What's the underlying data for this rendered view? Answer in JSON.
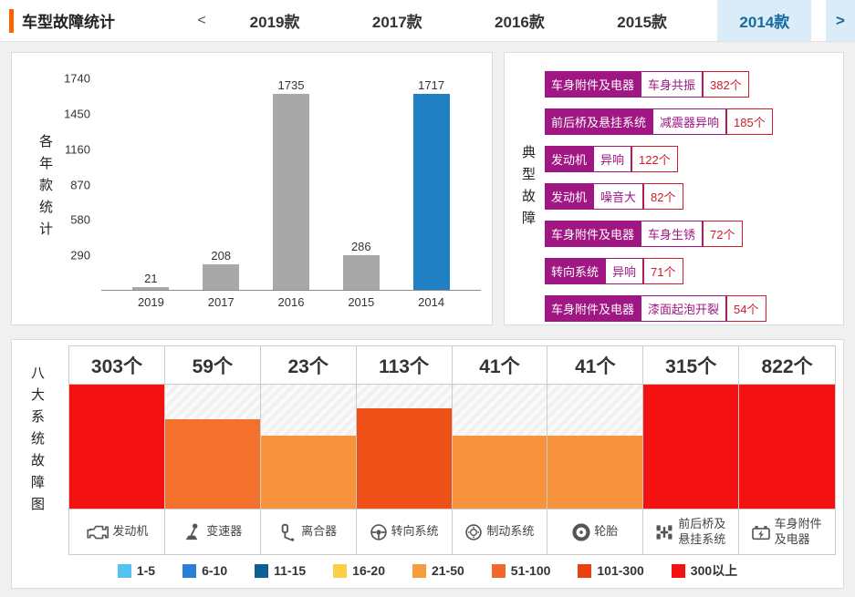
{
  "colors": {
    "accent": "#ff6200",
    "tab-active-bg": "#d9ecf8",
    "tab-active-text": "#176a9e",
    "badge-magenta": "#a01682",
    "count-red": "#cf1b2b"
  },
  "header": {
    "title": "车型故障统计",
    "prev_arrow": "<",
    "next_arrow": ">",
    "tabs": [
      {
        "label": "2019款",
        "active": false
      },
      {
        "label": "2017款",
        "active": false
      },
      {
        "label": "2016款",
        "active": false
      },
      {
        "label": "2015款",
        "active": false
      },
      {
        "label": "2014款",
        "active": true
      }
    ]
  },
  "yearly_panel": {
    "side_label": "各年款统计"
  },
  "typical_panel": {
    "side_label": "典型故障",
    "items": [
      {
        "system": "车身附件及电器",
        "fault": "车身共振",
        "count": "382个"
      },
      {
        "system": "前后桥及悬挂系统",
        "fault": "减震器异响",
        "count": "185个"
      },
      {
        "system": "发动机",
        "fault": "异响",
        "count": "122个"
      },
      {
        "system": "发动机",
        "fault": "噪音大",
        "count": "82个"
      },
      {
        "system": "车身附件及电器",
        "fault": "车身生锈",
        "count": "72个"
      },
      {
        "system": "转向系统",
        "fault": "异响",
        "count": "71个"
      },
      {
        "system": "车身附件及电器",
        "fault": "漆面起泡开裂",
        "count": "54个"
      }
    ]
  },
  "systems_panel": {
    "side_label": "八大系统故障图"
  },
  "chart_data": [
    {
      "type": "bar",
      "title": "各年款统计",
      "categories": [
        "2019",
        "2017",
        "2016",
        "2015",
        "2014"
      ],
      "values": [
        21,
        208,
        1735,
        286,
        1717
      ],
      "value_labels": [
        "21",
        "208",
        "1735",
        "286",
        "1717"
      ],
      "bar_colors": [
        "#a8a8a8",
        "#a8a8a8",
        "#a8a8a8",
        "#a8a8a8",
        "#1f80c3"
      ],
      "yticks": [
        290,
        580,
        870,
        1160,
        1450,
        1740
      ],
      "ylim": [
        0,
        1740
      ],
      "grid": false,
      "legend_position": "none",
      "highlight_category": "2014"
    },
    {
      "type": "bar",
      "title": "八大系统故障图",
      "categories": [
        "发动机",
        "变速器",
        "离合器",
        "转向系统",
        "制动系统",
        "轮胎",
        "前后桥及悬挂系统",
        "车身附件及电器"
      ],
      "values": [
        303,
        59,
        23,
        113,
        41,
        41,
        315,
        822
      ],
      "count_labels": [
        "303个",
        "59个",
        "23个",
        "113个",
        "41个",
        "41个",
        "315个",
        "822个"
      ],
      "bar_colors": [
        "#f31111",
        "#f3702d",
        "#f6933c",
        "#ef5017",
        "#f6933c",
        "#f6933c",
        "#f31111",
        "#f31111"
      ],
      "bar_height_pct": [
        100,
        72,
        59,
        81,
        59,
        59,
        100,
        100
      ],
      "icons": [
        "engine-icon",
        "gearshift-icon",
        "clutch-icon",
        "steering-wheel-icon",
        "brake-icon",
        "tire-icon",
        "axle-icon",
        "battery-icon"
      ]
    }
  ],
  "legend": {
    "items": [
      {
        "label": "1-5",
        "color": "#54c3f0"
      },
      {
        "label": "6-10",
        "color": "#2b7fd6"
      },
      {
        "label": "11-15",
        "color": "#0f5e94"
      },
      {
        "label": "16-20",
        "color": "#fad049"
      },
      {
        "label": "21-50",
        "color": "#f59d3f"
      },
      {
        "label": "51-100",
        "color": "#f2682c"
      },
      {
        "label": "101-300",
        "color": "#e8430f"
      },
      {
        "label": "300以上",
        "color": "#f31111"
      }
    ]
  }
}
